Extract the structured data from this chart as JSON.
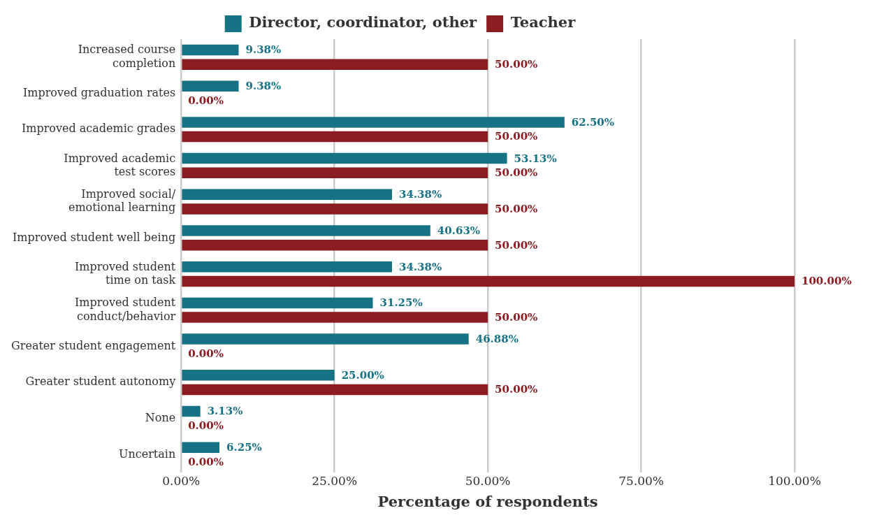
{
  "chart_data": {
    "type": "bar",
    "orientation": "horizontal",
    "xlabel": "Percentage of respondents",
    "categories": [
      "Increased course\ncompletion",
      "Improved graduation rates",
      "Improved academic grades",
      "Improved academic\ntest scores",
      "Improved social/\nemotional learning",
      "Improved student well being",
      "Improved student\ntime on task",
      "Improved student\nconduct/behavior",
      "Greater student engagement",
      "Greater student autonomy",
      "None",
      "Uncertain"
    ],
    "series": [
      {
        "name": "Director, coordinator, other",
        "color": "#167385",
        "values": [
          9.38,
          9.38,
          62.5,
          53.13,
          34.38,
          40.63,
          34.38,
          31.25,
          46.88,
          25,
          3.13,
          6.25
        ],
        "value_labels": [
          "9.38%",
          "9.38%",
          "62.50%",
          "53.13%",
          "34.38%",
          "40.63%",
          "34.38%",
          "31.25%",
          "46.88%",
          "25.00%",
          "3.13%",
          "6.25%"
        ]
      },
      {
        "name": "Teacher",
        "color": "#8a1c22",
        "values": [
          50,
          0,
          50,
          50,
          50,
          50,
          100,
          50,
          0,
          50,
          0,
          0
        ],
        "value_labels": [
          "50.00%",
          "0.00%",
          "50.00%",
          "50.00%",
          "50.00%",
          "50.00%",
          "100.00%",
          "50.00%",
          "0.00%",
          "50.00%",
          "0.00%",
          "0.00%"
        ]
      }
    ],
    "xlim": [
      0,
      100
    ],
    "xticks": [
      {
        "value": 0,
        "label": "0.00%"
      },
      {
        "value": 25,
        "label": "25.00%"
      },
      {
        "value": 50,
        "label": "50.00%"
      },
      {
        "value": 75,
        "label": "75.00%"
      },
      {
        "value": 100,
        "label": "100.00%"
      }
    ],
    "grid": "x",
    "legend": "top"
  }
}
